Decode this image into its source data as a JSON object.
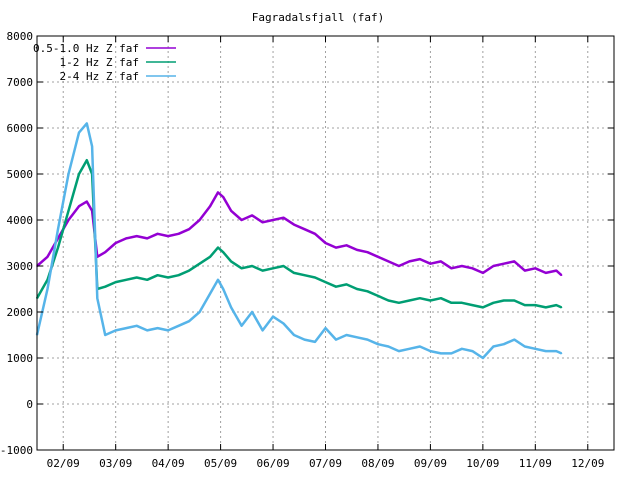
{
  "chart_data": {
    "type": "line",
    "title": "Fagradalsfjall (faf)",
    "xlabel": "",
    "ylabel": "",
    "ylim": [
      -1000,
      8000
    ],
    "xlim": [
      0,
      11.0
    ],
    "grid": true,
    "legend_position": "top-left",
    "x_ticks": [
      {
        "label": "02/09",
        "x": 0.5
      },
      {
        "label": "03/09",
        "x": 1.5
      },
      {
        "label": "04/09",
        "x": 2.5
      },
      {
        "label": "05/09",
        "x": 3.5
      },
      {
        "label": "06/09",
        "x": 4.5
      },
      {
        "label": "07/09",
        "x": 5.5
      },
      {
        "label": "08/09",
        "x": 6.5
      },
      {
        "label": "09/09",
        "x": 7.5
      },
      {
        "label": "10/09",
        "x": 8.5
      },
      {
        "label": "11/09",
        "x": 9.5
      },
      {
        "label": "12/09",
        "x": 10.5
      }
    ],
    "y_ticks": [
      -1000,
      0,
      1000,
      2000,
      3000,
      4000,
      5000,
      6000,
      7000,
      8000
    ],
    "series": [
      {
        "name": "0.5-1.0 Hz Z faf",
        "color": "#9400d3",
        "x": [
          0.0,
          0.2,
          0.4,
          0.6,
          0.8,
          0.95,
          1.05,
          1.15,
          1.3,
          1.5,
          1.7,
          1.9,
          2.1,
          2.3,
          2.5,
          2.7,
          2.9,
          3.1,
          3.3,
          3.45,
          3.55,
          3.7,
          3.9,
          4.1,
          4.3,
          4.5,
          4.7,
          4.9,
          5.1,
          5.3,
          5.5,
          5.7,
          5.9,
          6.1,
          6.3,
          6.5,
          6.7,
          6.9,
          7.1,
          7.3,
          7.5,
          7.7,
          7.9,
          8.1,
          8.3,
          8.5,
          8.7,
          8.9,
          9.1,
          9.3,
          9.5,
          9.7,
          9.9,
          10.0
        ],
        "values": [
          3000,
          3200,
          3600,
          4000,
          4300,
          4400,
          4200,
          3200,
          3300,
          3500,
          3600,
          3650,
          3600,
          3700,
          3650,
          3700,
          3800,
          4000,
          4300,
          4600,
          4500,
          4200,
          4000,
          4100,
          3950,
          4000,
          4050,
          3900,
          3800,
          3700,
          3500,
          3400,
          3450,
          3350,
          3300,
          3200,
          3100,
          3000,
          3100,
          3150,
          3050,
          3100,
          2950,
          3000,
          2950,
          2850,
          3000,
          3050,
          3100,
          2900,
          2950,
          2850,
          2900,
          2800
        ]
      },
      {
        "name": "1-2 Hz Z faf",
        "color": "#009e73",
        "x": [
          0.0,
          0.2,
          0.4,
          0.6,
          0.8,
          0.95,
          1.05,
          1.15,
          1.3,
          1.5,
          1.7,
          1.9,
          2.1,
          2.3,
          2.5,
          2.7,
          2.9,
          3.1,
          3.3,
          3.45,
          3.55,
          3.7,
          3.9,
          4.1,
          4.3,
          4.5,
          4.7,
          4.9,
          5.1,
          5.3,
          5.5,
          5.7,
          5.9,
          6.1,
          6.3,
          6.5,
          6.7,
          6.9,
          7.1,
          7.3,
          7.5,
          7.7,
          7.9,
          8.1,
          8.3,
          8.5,
          8.7,
          8.9,
          9.1,
          9.3,
          9.5,
          9.7,
          9.9,
          10.0
        ],
        "values": [
          2300,
          2700,
          3400,
          4200,
          5000,
          5300,
          5000,
          2500,
          2550,
          2650,
          2700,
          2750,
          2700,
          2800,
          2750,
          2800,
          2900,
          3050,
          3200,
          3400,
          3300,
          3100,
          2950,
          3000,
          2900,
          2950,
          3000,
          2850,
          2800,
          2750,
          2650,
          2550,
          2600,
          2500,
          2450,
          2350,
          2250,
          2200,
          2250,
          2300,
          2250,
          2300,
          2200,
          2200,
          2150,
          2100,
          2200,
          2250,
          2250,
          2150,
          2150,
          2100,
          2150,
          2100
        ]
      },
      {
        "name": "2-4 Hz Z faf",
        "color": "#56b4e9",
        "x": [
          0.0,
          0.2,
          0.4,
          0.6,
          0.8,
          0.95,
          1.05,
          1.15,
          1.3,
          1.5,
          1.7,
          1.9,
          2.1,
          2.3,
          2.5,
          2.7,
          2.9,
          3.1,
          3.3,
          3.45,
          3.55,
          3.7,
          3.9,
          4.1,
          4.3,
          4.5,
          4.7,
          4.9,
          5.1,
          5.3,
          5.5,
          5.7,
          5.9,
          6.1,
          6.3,
          6.5,
          6.7,
          6.9,
          7.1,
          7.3,
          7.5,
          7.7,
          7.9,
          8.1,
          8.3,
          8.5,
          8.7,
          8.9,
          9.1,
          9.3,
          9.5,
          9.7,
          9.9,
          10.0
        ],
        "values": [
          1500,
          2500,
          3800,
          5000,
          5900,
          6100,
          5600,
          2300,
          1500,
          1600,
          1650,
          1700,
          1600,
          1650,
          1600,
          1700,
          1800,
          2000,
          2400,
          2700,
          2500,
          2100,
          1700,
          2000,
          1600,
          1900,
          1750,
          1500,
          1400,
          1350,
          1650,
          1400,
          1500,
          1450,
          1400,
          1300,
          1250,
          1150,
          1200,
          1250,
          1150,
          1100,
          1100,
          1200,
          1150,
          1000,
          1250,
          1300,
          1400,
          1250,
          1200,
          1150,
          1150,
          1100
        ]
      }
    ]
  }
}
